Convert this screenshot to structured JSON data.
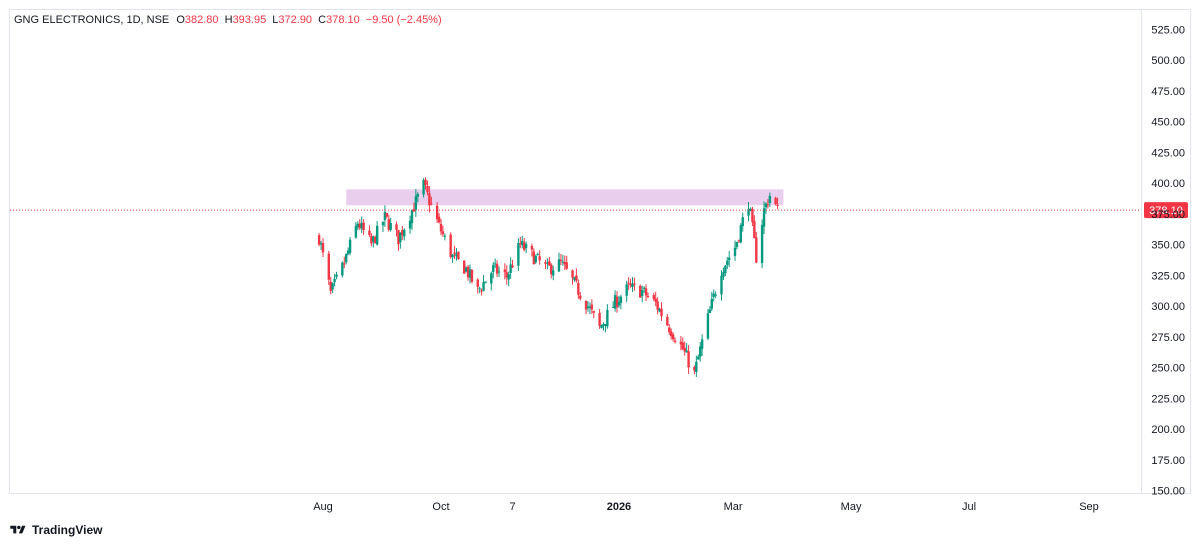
{
  "legend": {
    "symbol": "GNG ELECTRONICS, 1D, NSE",
    "o_label": "O",
    "o": "382.80",
    "h_label": "H",
    "h": "393.95",
    "l_label": "L",
    "l": "372.90",
    "c_label": "C",
    "c": "378.10",
    "change": "−9.50 (−2.45%)"
  },
  "brand": {
    "name": "TradingView",
    "icon": "tradingview-logo"
  },
  "colors": {
    "up": "#089981",
    "down": "#f23645",
    "zone": "#e1bee7",
    "price_line": "#f23645"
  },
  "chart_data": {
    "type": "candlestick",
    "last_price": 378.1,
    "last_price_label": "378.10",
    "ylim": [
      150,
      525
    ],
    "y_ticks": [
      "525.00",
      "500.00",
      "475.00",
      "450.00",
      "425.00",
      "400.00",
      "375.00",
      "350.00",
      "325.00",
      "300.00",
      "275.00",
      "250.00",
      "225.00",
      "200.00",
      "175.00",
      "150.00"
    ],
    "x_ticks": [
      {
        "label": "Aug",
        "date": "2025-08-01",
        "bold": false
      },
      {
        "label": "Oct",
        "date": "2025-10-01",
        "bold": false
      },
      {
        "label": "7",
        "date": "2025-11-07",
        "bold": false
      },
      {
        "label": "2026",
        "date": "2026-01-01",
        "bold": true
      },
      {
        "label": "Mar",
        "date": "2026-03-01",
        "bold": false
      },
      {
        "label": "May",
        "date": "2026-05-01",
        "bold": false
      },
      {
        "label": "Jul",
        "date": "2026-07-01",
        "bold": false
      },
      {
        "label": "Sep",
        "date": "2026-09-01",
        "bold": false
      }
    ],
    "resistance_zone": {
      "from": 382,
      "to": 395,
      "start_date": "2025-08-13",
      "end_date": "2026-03-27"
    },
    "closes": [
      {
        "date": "2025-07-30",
        "close": 356
      },
      {
        "date": "2025-08-05",
        "close": 310
      },
      {
        "date": "2025-08-12",
        "close": 335
      },
      {
        "date": "2025-08-19",
        "close": 368
      },
      {
        "date": "2025-08-26",
        "close": 350
      },
      {
        "date": "2025-09-02",
        "close": 372
      },
      {
        "date": "2025-09-09",
        "close": 355
      },
      {
        "date": "2025-09-16",
        "close": 378
      },
      {
        "date": "2025-09-22",
        "close": 398
      },
      {
        "date": "2025-09-30",
        "close": 365
      },
      {
        "date": "2025-10-07",
        "close": 340
      },
      {
        "date": "2025-10-14",
        "close": 330
      },
      {
        "date": "2025-10-20",
        "close": 312
      },
      {
        "date": "2025-10-28",
        "close": 330
      },
      {
        "date": "2025-11-04",
        "close": 324
      },
      {
        "date": "2025-11-11",
        "close": 350
      },
      {
        "date": "2025-11-18",
        "close": 340
      },
      {
        "date": "2025-11-25",
        "close": 330
      },
      {
        "date": "2025-12-02",
        "close": 335
      },
      {
        "date": "2025-12-09",
        "close": 318
      },
      {
        "date": "2025-12-16",
        "close": 300
      },
      {
        "date": "2025-12-22",
        "close": 282
      },
      {
        "date": "2025-12-30",
        "close": 303
      },
      {
        "date": "2026-01-06",
        "close": 315
      },
      {
        "date": "2026-01-13",
        "close": 312
      },
      {
        "date": "2026-01-20",
        "close": 302
      },
      {
        "date": "2026-01-27",
        "close": 283
      },
      {
        "date": "2026-02-03",
        "close": 265
      },
      {
        "date": "2026-02-09",
        "close": 245
      },
      {
        "date": "2026-02-16",
        "close": 290
      },
      {
        "date": "2026-02-23",
        "close": 330
      },
      {
        "date": "2026-03-02",
        "close": 348
      },
      {
        "date": "2026-03-09",
        "close": 385
      },
      {
        "date": "2026-03-13",
        "close": 340
      },
      {
        "date": "2026-03-17",
        "close": 378
      },
      {
        "date": "2026-03-20",
        "close": 390
      },
      {
        "date": "2026-03-24",
        "close": 378
      }
    ]
  }
}
